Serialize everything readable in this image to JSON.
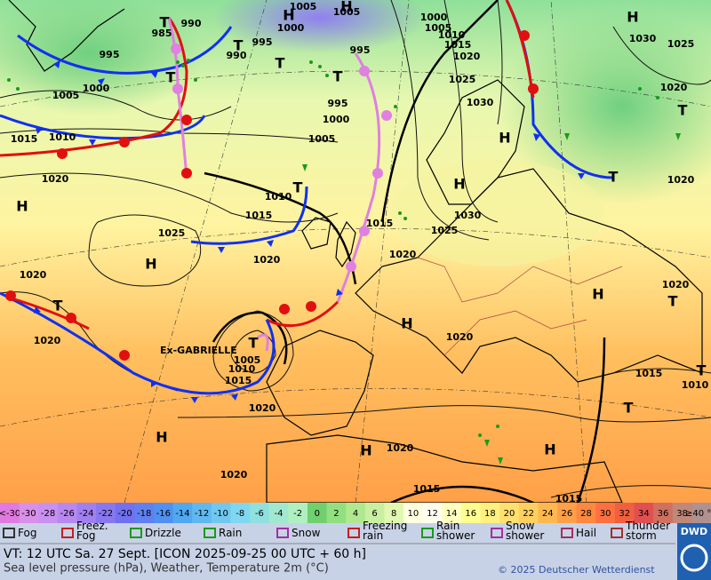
{
  "map": {
    "pressure_labels": [
      990,
      985,
      995,
      990,
      1000,
      1005,
      1005,
      995,
      1000,
      1005,
      1010,
      1015,
      1020,
      995,
      1000,
      1005,
      995,
      1000,
      1005,
      1010,
      1015,
      1020,
      1025,
      1030,
      1030,
      1025,
      1020,
      1020,
      1010,
      1015,
      1025,
      1020,
      1015,
      1020,
      1025,
      1030,
      1020,
      1020,
      1005,
      1010,
      1015,
      1020,
      1020,
      1020,
      1020,
      1015,
      1015,
      1015,
      1010,
      1020
    ],
    "centers": [
      "H",
      "H",
      "H",
      "H",
      "T",
      "T",
      "T",
      "T",
      "T",
      "T",
      "T",
      "T",
      "H",
      "H",
      "H",
      "T",
      "T",
      "H",
      "T",
      "H",
      "T",
      "T",
      "H",
      "H",
      "H"
    ],
    "storm_label": "Ex-GABRIELLE"
  },
  "color_scale": {
    "labels": [
      "<-30",
      "-30",
      "-28",
      "-26",
      "-24",
      "-22",
      "-20",
      "-18",
      "-16",
      "-14",
      "-12",
      "-10",
      "-8",
      "-6",
      "-4",
      "-2",
      "0",
      "2",
      "4",
      "6",
      "8",
      "10",
      "12",
      "14",
      "16",
      "18",
      "20",
      "22",
      "24",
      "26",
      "28",
      "30",
      "32",
      "34",
      "36",
      "38",
      "≥40 °C"
    ],
    "colors": [
      "#e07ae0",
      "#d890e8",
      "#c890f0",
      "#b888f0",
      "#a080f0",
      "#8878f0",
      "#7070f0",
      "#6080f0",
      "#5090f0",
      "#50a8f0",
      "#60b8f0",
      "#70c8f0",
      "#80d8f0",
      "#90e0e0",
      "#a0e8d0",
      "#b0f0c0",
      "#70d070",
      "#90e080",
      "#b0e890",
      "#c8f0a0",
      "#e0f8b0",
      "#ffffe0",
      "#fffff0",
      "#ffffc0",
      "#ffff90",
      "#fff080",
      "#ffe070",
      "#ffd060",
      "#ffb850",
      "#ffa048",
      "#ff8840",
      "#ff7040",
      "#f06040",
      "#e05050",
      "#d07060",
      "#c08878",
      "#b09090"
    ]
  },
  "legend": [
    "Fog",
    "Freez. Fog",
    "Drizzle",
    "Rain",
    "Snow",
    "Freezing rain",
    "Rain shower",
    "Snow shower",
    "Hail",
    "Thunder storm"
  ],
  "footer": {
    "valid_time": "VT: 12 UTC Sa.  27 Sept. [ICON 2025-09-25  00 UTC + 60 h]",
    "description": "Sea level pressure (hPa), Weather, Temperature 2m (°C)",
    "copyright": "© 2025 Deutscher Wetterdienst",
    "logo": "DWD"
  }
}
